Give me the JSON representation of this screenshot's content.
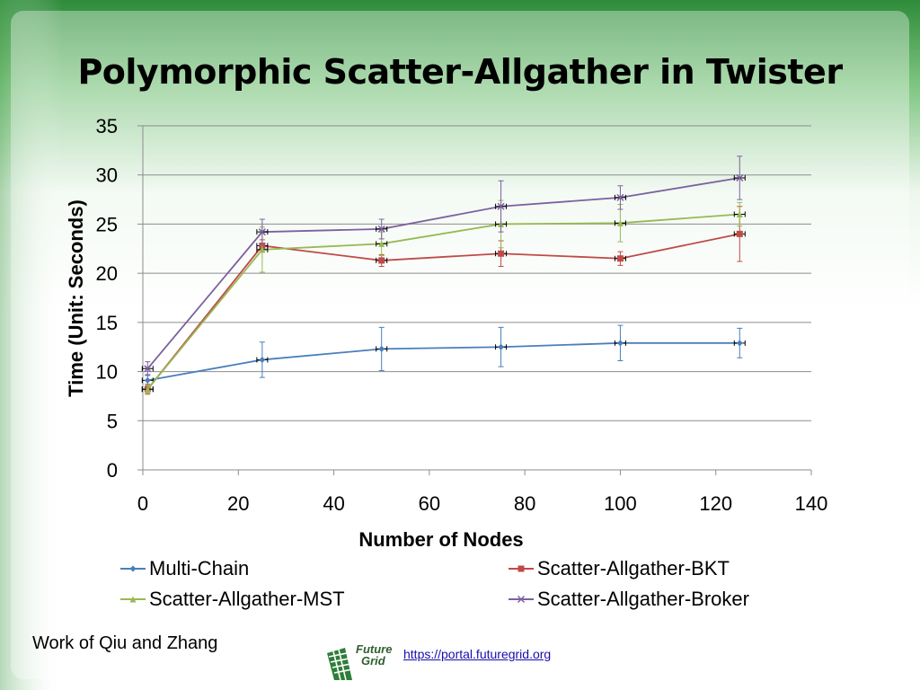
{
  "slide": {
    "title": "Polymorphic Scatter-Allgather in Twister",
    "credit": "Work of Qiu and Zhang",
    "logo_text_line1": "Future",
    "logo_text_line2": "Grid",
    "link_text": "https://portal.futuregrid.org",
    "background_colors": [
      "#2e8b3a",
      "#7cc47f",
      "#ffffff"
    ]
  },
  "chart_data": {
    "type": "line",
    "title": "",
    "xlabel": "Number of Nodes",
    "ylabel": "Time (Unit: Seconds)",
    "xlim": [
      0,
      140
    ],
    "ylim": [
      0,
      35
    ],
    "x_ticks": [
      0,
      20,
      40,
      60,
      80,
      100,
      120,
      140
    ],
    "y_ticks": [
      0,
      5,
      10,
      15,
      20,
      25,
      30,
      35
    ],
    "grid": "horizontal",
    "legend_position": "bottom",
    "error_bars": true,
    "x": [
      1,
      25,
      50,
      75,
      100,
      125
    ],
    "series": [
      {
        "name": "Multi-Chain",
        "color": "#4a7ebb",
        "marker": "diamond",
        "values": [
          9.1,
          11.2,
          12.3,
          12.5,
          12.9,
          12.9
        ],
        "error": [
          0.6,
          1.8,
          2.2,
          2.0,
          1.8,
          1.5
        ]
      },
      {
        "name": "Scatter-Allgather-BKT",
        "color": "#be4b48",
        "marker": "square",
        "values": [
          8.2,
          22.8,
          21.3,
          22.0,
          21.5,
          24.0
        ],
        "error": [
          0.5,
          0.6,
          0.6,
          1.3,
          0.7,
          2.8
        ]
      },
      {
        "name": "Scatter-Allgather-MST",
        "color": "#98b954",
        "marker": "triangle",
        "values": [
          8.2,
          22.4,
          23.0,
          25.0,
          25.1,
          26.0
        ],
        "error": [
          0.4,
          2.3,
          1.2,
          2.4,
          1.9,
          1.2
        ]
      },
      {
        "name": "Scatter-Allgather-Broker",
        "color": "#7d60a0",
        "marker": "x",
        "values": [
          10.3,
          24.2,
          24.5,
          26.8,
          27.7,
          29.7
        ],
        "error": [
          0.7,
          1.3,
          1.0,
          2.6,
          1.2,
          2.2
        ]
      }
    ]
  }
}
